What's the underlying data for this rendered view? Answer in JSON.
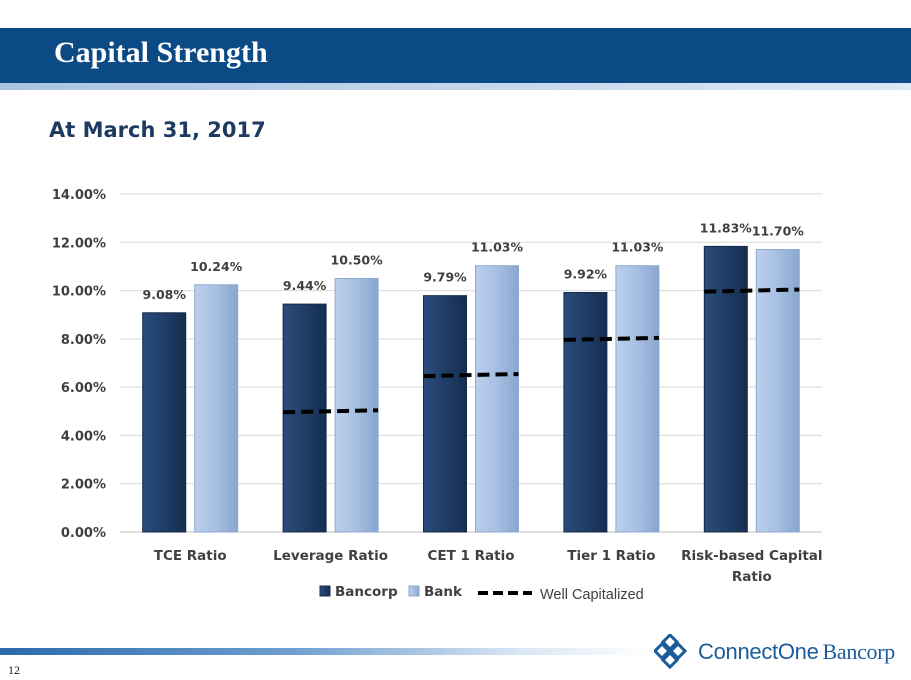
{
  "header": {
    "title": "Capital Strength"
  },
  "subtitle": "At March 31, 2017",
  "footer": {
    "page_number": "12"
  },
  "logo": {
    "name_part1": "ConnectOne",
    "name_part2": "Bancorp"
  },
  "colors": {
    "header_bar": "#0b4a85",
    "bancorp": "#1f3d66",
    "bank": "#a6bfe2",
    "well_capitalized": "#000000",
    "logo": "#1c5d99"
  },
  "chart_data": {
    "type": "bar",
    "categories": [
      "TCE Ratio",
      "Leverage Ratio",
      "CET 1 Ratio",
      "Tier 1 Ratio",
      "Risk-based Capital Ratio"
    ],
    "category_labels": [
      [
        "TCE Ratio"
      ],
      [
        "Leverage Ratio"
      ],
      [
        "CET 1 Ratio"
      ],
      [
        "Tier 1 Ratio"
      ],
      [
        "Risk-based Capital",
        "Ratio"
      ]
    ],
    "series": [
      {
        "name": "Bancorp",
        "values": [
          9.08,
          9.44,
          9.79,
          9.92,
          11.83
        ],
        "labels": [
          "9.08%",
          "9.44%",
          "9.79%",
          "9.92%",
          "11.83%"
        ]
      },
      {
        "name": "Bank",
        "values": [
          10.24,
          10.5,
          11.03,
          11.03,
          11.7
        ],
        "labels": [
          "10.24%",
          "10.50%",
          "11.03%",
          "11.03%",
          "11.70%"
        ]
      }
    ],
    "reference_line": {
      "name": "Well Capitalized",
      "values": [
        null,
        5.0,
        6.5,
        8.0,
        10.0
      ]
    },
    "ylim": [
      0,
      14
    ],
    "yticks": [
      "0.00%",
      "2.00%",
      "4.00%",
      "6.00%",
      "8.00%",
      "10.00%",
      "12.00%",
      "14.00%"
    ],
    "grid": true,
    "legend": "bottom"
  }
}
